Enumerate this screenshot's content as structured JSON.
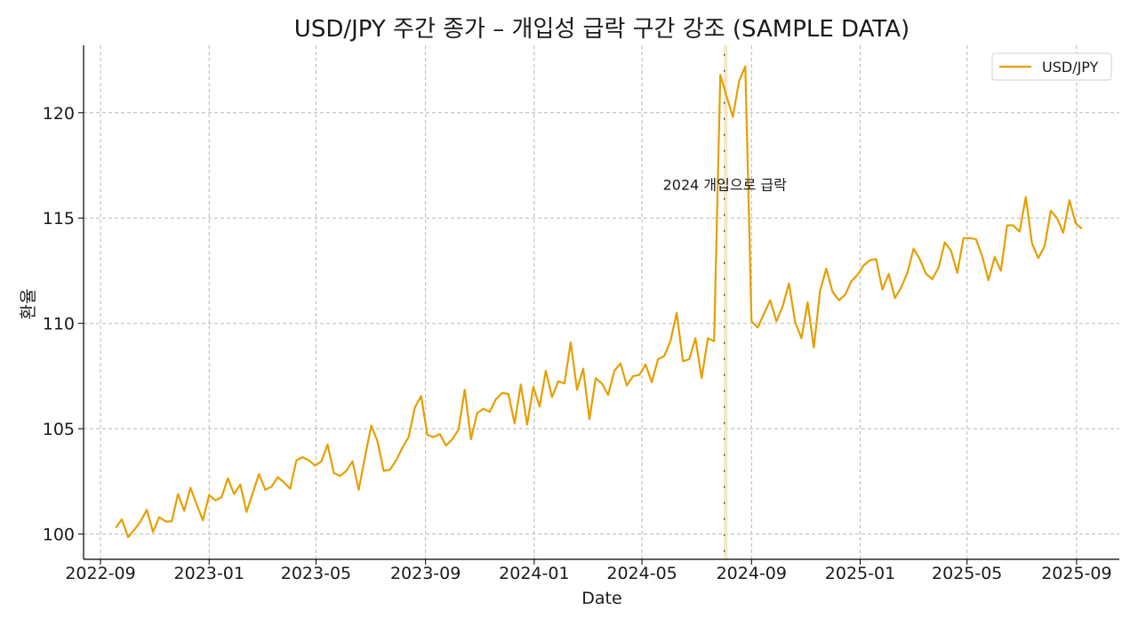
{
  "chart_data": {
    "type": "line",
    "title": "USD/JPY 주간 종가 – 개입성 급락 구간 강조 (SAMPLE DATA)",
    "xlabel": "Date",
    "ylabel": "환율",
    "x_ticks": [
      "2022-09",
      "2023-01",
      "2023-05",
      "2023-09",
      "2024-01",
      "2024-05",
      "2024-09",
      "2025-01",
      "2025-05",
      "2025-09"
    ],
    "y_ticks": [
      100,
      105,
      110,
      115,
      120
    ],
    "ylim": [
      98.8,
      123.2
    ],
    "xlim": [
      "2022-08-13",
      "2025-10-19"
    ],
    "grid": true,
    "grid_style": "dashed",
    "legend_position": "top-right",
    "series": [
      {
        "name": "USD/JPY",
        "color": "#E69F00",
        "dates": [
          "2022-09-18",
          "2022-09-25",
          "2022-10-02",
          "2022-10-09",
          "2022-10-16",
          "2022-10-23",
          "2022-10-30",
          "2022-11-06",
          "2022-11-13",
          "2022-11-20",
          "2022-11-27",
          "2022-12-04",
          "2022-12-11",
          "2022-12-18",
          "2022-12-25",
          "2023-01-01",
          "2023-01-08",
          "2023-01-15",
          "2023-01-22",
          "2023-01-29",
          "2023-02-05",
          "2023-02-12",
          "2023-02-19",
          "2023-02-26",
          "2023-03-05",
          "2023-03-12",
          "2023-03-19",
          "2023-03-26",
          "2023-04-02",
          "2023-04-09",
          "2023-04-16",
          "2023-04-23",
          "2023-04-30",
          "2023-05-07",
          "2023-05-14",
          "2023-05-21",
          "2023-05-28",
          "2023-06-04",
          "2023-06-11",
          "2023-06-18",
          "2023-06-25",
          "2023-07-02",
          "2023-07-09",
          "2023-07-16",
          "2023-07-23",
          "2023-07-30",
          "2023-08-06",
          "2023-08-13",
          "2023-08-20",
          "2023-08-27",
          "2023-09-03",
          "2023-09-10",
          "2023-09-17",
          "2023-09-24",
          "2023-10-01",
          "2023-10-08",
          "2023-10-15",
          "2023-10-22",
          "2023-10-29",
          "2023-11-05",
          "2023-11-12",
          "2023-11-19",
          "2023-11-26",
          "2023-12-03",
          "2023-12-10",
          "2023-12-17",
          "2023-12-24",
          "2023-12-31",
          "2024-01-07",
          "2024-01-14",
          "2024-01-21",
          "2024-01-28",
          "2024-02-04",
          "2024-02-11",
          "2024-02-18",
          "2024-02-25",
          "2024-03-03",
          "2024-03-10",
          "2024-03-17",
          "2024-03-24",
          "2024-03-31",
          "2024-04-07",
          "2024-04-14",
          "2024-04-21",
          "2024-04-28",
          "2024-05-05",
          "2024-05-12",
          "2024-05-19",
          "2024-05-26",
          "2024-06-02",
          "2024-06-09",
          "2024-06-16",
          "2024-06-23",
          "2024-06-30",
          "2024-07-07",
          "2024-07-14",
          "2024-07-21",
          "2024-07-28",
          "2024-08-04",
          "2024-08-11",
          "2024-08-18",
          "2024-08-25",
          "2024-09-01",
          "2024-09-08",
          "2024-09-15",
          "2024-09-22",
          "2024-09-29",
          "2024-10-06",
          "2024-10-13",
          "2024-10-20",
          "2024-10-27",
          "2024-11-03",
          "2024-11-10",
          "2024-11-17",
          "2024-11-24",
          "2024-12-01",
          "2024-12-08",
          "2024-12-15",
          "2024-12-22",
          "2024-12-29",
          "2025-01-05",
          "2025-01-12",
          "2025-01-19",
          "2025-01-26",
          "2025-02-02",
          "2025-02-09",
          "2025-02-16",
          "2025-02-23",
          "2025-03-02",
          "2025-03-09",
          "2025-03-16",
          "2025-03-23",
          "2025-03-30",
          "2025-04-06",
          "2025-04-13",
          "2025-04-20",
          "2025-04-27",
          "2025-05-04",
          "2025-05-11",
          "2025-05-18",
          "2025-05-25",
          "2025-06-01",
          "2025-06-08",
          "2025-06-15",
          "2025-06-22",
          "2025-06-29",
          "2025-07-06",
          "2025-07-13",
          "2025-07-20",
          "2025-07-27",
          "2025-08-03",
          "2025-08-10",
          "2025-08-17",
          "2025-08-24",
          "2025-08-31",
          "2025-09-07"
        ],
        "values": [
          100.3,
          100.7,
          99.85,
          100.2,
          100.6,
          101.15,
          100.1,
          100.8,
          100.6,
          100.6,
          101.9,
          101.1,
          102.2,
          101.4,
          100.65,
          101.85,
          101.6,
          101.75,
          102.65,
          101.9,
          102.35,
          101.05,
          101.95,
          102.85,
          102.1,
          102.25,
          102.7,
          102.45,
          102.15,
          103.5,
          103.65,
          103.5,
          103.25,
          103.45,
          104.25,
          102.9,
          102.75,
          103.0,
          103.45,
          102.1,
          103.65,
          105.15,
          104.4,
          103.0,
          103.05,
          103.5,
          104.1,
          104.6,
          106.0,
          106.55,
          104.7,
          104.6,
          104.75,
          104.2,
          104.5,
          104.95,
          106.85,
          104.5,
          105.75,
          105.95,
          105.8,
          106.4,
          106.7,
          106.65,
          105.25,
          107.1,
          105.2,
          107.0,
          106.05,
          107.75,
          106.5,
          107.25,
          107.15,
          109.1,
          106.85,
          107.85,
          105.45,
          107.4,
          107.15,
          106.6,
          107.75,
          108.1,
          107.05,
          107.5,
          107.55,
          108.05,
          107.2,
          108.3,
          108.45,
          109.15,
          110.5,
          108.2,
          108.3,
          109.3,
          107.4,
          109.3,
          109.15,
          121.8,
          120.8,
          119.8,
          121.5,
          122.2,
          110.1,
          109.8,
          110.45,
          111.1,
          110.1,
          110.8,
          111.9,
          110.05,
          109.3,
          111.0,
          108.85,
          111.55,
          112.6,
          111.5,
          111.1,
          111.35,
          112.0,
          112.3,
          112.75,
          113.0,
          113.05,
          111.6,
          112.35,
          111.2,
          111.7,
          112.4,
          113.55,
          113.05,
          112.35,
          112.1,
          112.65,
          113.85,
          113.45,
          112.4,
          114.05,
          114.05,
          114.0,
          113.2,
          112.05,
          113.15,
          112.5,
          114.65,
          114.65,
          114.35,
          116.0,
          113.8,
          113.1,
          113.65,
          115.35,
          115.0,
          114.3,
          115.85,
          114.75,
          114.5
        ]
      }
    ],
    "annotations": [
      {
        "text": "2024 개입으로 급락",
        "x": "2024-08-02",
        "y": 116.6,
        "type": "label"
      }
    ],
    "highlight_span": {
      "start": "2024-08-01",
      "end": "2024-08-05",
      "fill": "#F5E6C4",
      "hatch": "diagonal"
    }
  }
}
